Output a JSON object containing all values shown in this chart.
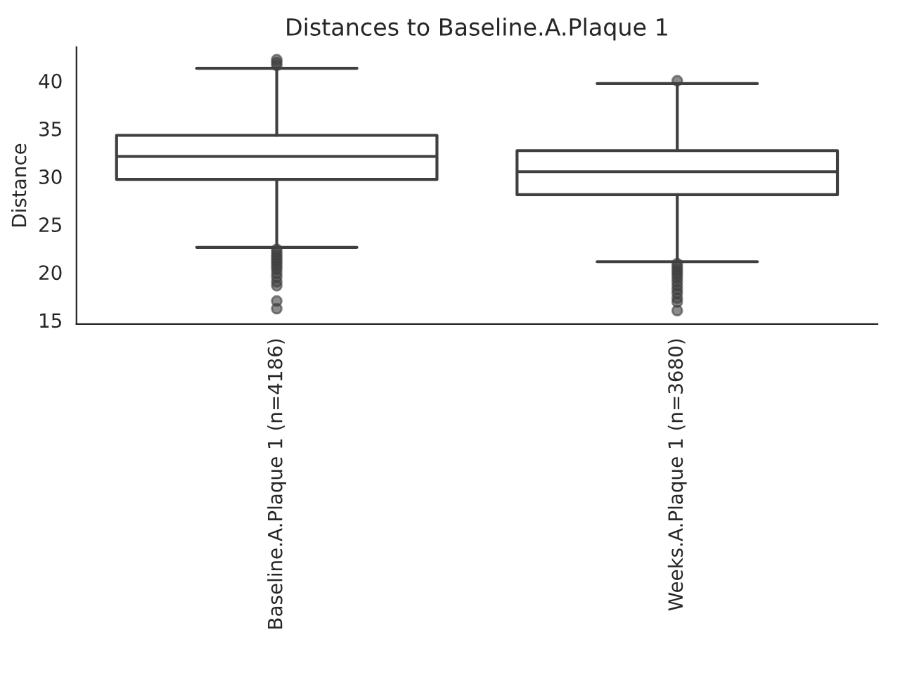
{
  "chart_data": {
    "type": "box",
    "title": "Distances to Baseline.A.Plaque 1",
    "ylabel": "Distance",
    "categories": [
      "Baseline.A.Plaque 1 (n=4186)",
      "Weeks.A.Plaque 1 (n=3680)"
    ],
    "boxes": [
      {
        "low": 22.6,
        "q1": 29.7,
        "median": 32.1,
        "q3": 34.3,
        "high": 41.3,
        "outliers": [
          42.2,
          41.9,
          41.6,
          22.4,
          22.1,
          21.8,
          21.5,
          21.2,
          20.9,
          20.6,
          20.3,
          19.9,
          19.5,
          19.0,
          18.6,
          17.0,
          16.2
        ]
      },
      {
        "low": 21.1,
        "q1": 28.1,
        "median": 30.5,
        "q3": 32.7,
        "high": 39.7,
        "outliers": [
          40.0,
          20.9,
          20.6,
          20.3,
          20.0,
          19.7,
          19.4,
          19.0,
          18.6,
          18.2,
          17.8,
          17.3,
          16.9,
          16.0
        ]
      }
    ],
    "ylim": [
      14.6,
      43.5
    ],
    "yticks": [
      15,
      20,
      25,
      30,
      35,
      40
    ],
    "grid": false,
    "legend": false
  }
}
